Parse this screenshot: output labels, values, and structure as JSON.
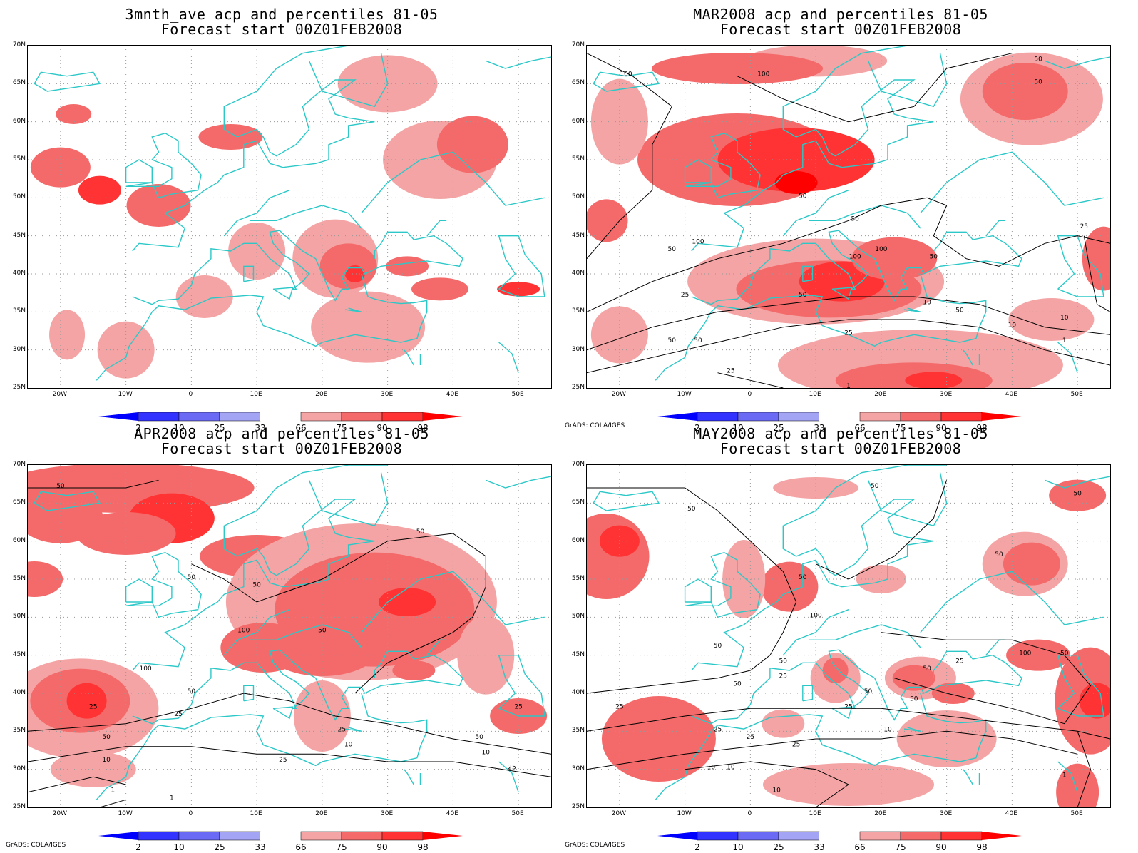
{
  "panels": [
    {
      "title1": "3mnth_ave acp and percentiles 81-05",
      "title2": "Forecast start 00Z01FEB2008",
      "credit": "",
      "contour_labels": []
    },
    {
      "title1": "MAR2008 acp and percentiles 81-05",
      "title2": "Forecast start 00Z01FEB2008",
      "credit": "GrADS: COLA/IGES",
      "contour_labels": [
        "100",
        "100",
        "100",
        "50",
        "50",
        "50",
        "50",
        "50",
        "100",
        "50",
        "50",
        "25",
        "50",
        "25",
        "10",
        "10",
        "10",
        "50",
        "25",
        "1",
        "1",
        "25",
        "50",
        "100"
      ]
    },
    {
      "title1": "APR2008 acp and percentiles 81-05",
      "title2": "Forecast start 00Z01FEB2008",
      "credit": "GrADS: COLA/IGES",
      "contour_labels": [
        "50",
        "50",
        "50",
        "50",
        "100",
        "50",
        "50",
        "100",
        "25",
        "25",
        "50",
        "25",
        "10",
        "25",
        "10",
        "50",
        "25",
        "10",
        "1",
        "1",
        "25"
      ]
    },
    {
      "title1": "MAY2008 acp and percentiles 81-05",
      "title2": "Forecast start 00Z01FEB2008",
      "credit": "GrADS: COLA/IGES",
      "contour_labels": [
        "50",
        "50",
        "50",
        "50",
        "50",
        "50",
        "100",
        "50",
        "100",
        "50",
        "50",
        "25",
        "25",
        "50",
        "25",
        "25",
        "25",
        "10",
        "50",
        "10",
        "10",
        "25",
        "10",
        "1",
        "50",
        "25"
      ]
    }
  ],
  "lat_labels": [
    "70N",
    "65N",
    "60N",
    "55N",
    "50N",
    "45N",
    "40N",
    "35N",
    "30N",
    "25N"
  ],
  "lon_labels": [
    "20W",
    "10W",
    "0",
    "10E",
    "20E",
    "30E",
    "40E",
    "50E"
  ],
  "colorbar": {
    "labels": [
      "2",
      "10",
      "25",
      "33",
      "66",
      "75",
      "90",
      "98"
    ],
    "colors": [
      "#0000ff",
      "#3333ff",
      "#6a6af4",
      "#a4a4f4",
      "#ffffff",
      "#f4a4a4",
      "#f46a6a",
      "#ff3333",
      "#ff0000"
    ]
  },
  "colors": {
    "coast": "#2cc8c8",
    "grid": "#999999",
    "contour": "#000000"
  }
}
